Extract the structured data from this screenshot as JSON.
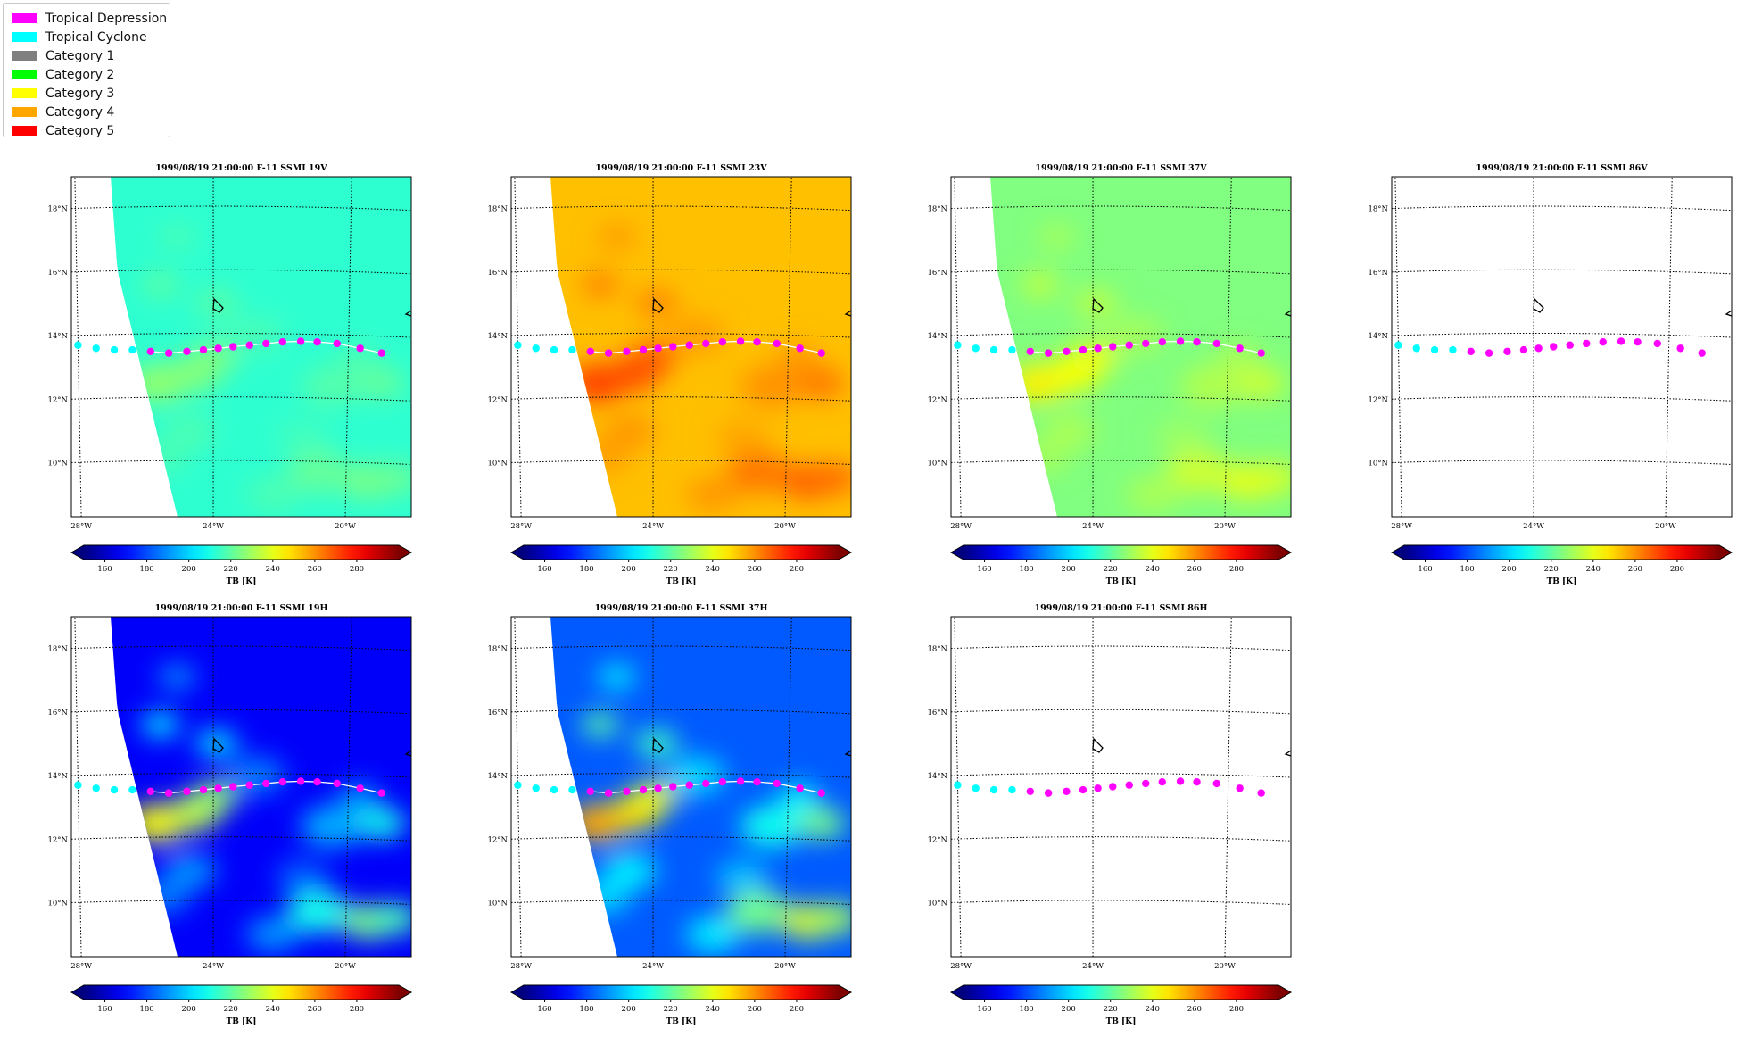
{
  "legend": {
    "items": [
      {
        "label": "Tropical Depression",
        "color": "#ff00ff"
      },
      {
        "label": "Tropical Cyclone",
        "color": "#00ffff"
      },
      {
        "label": "Category 1",
        "color": "#808080"
      },
      {
        "label": "Category 2",
        "color": "#00ff00"
      },
      {
        "label": "Category 3",
        "color": "#ffff00"
      },
      {
        "label": "Category 4",
        "color": "#ffa500"
      },
      {
        "label": "Category 5",
        "color": "#ff0000"
      }
    ]
  },
  "chart_data": [
    {
      "type": "heatmap",
      "title": "1999/08/19 21:00:00  F-11 SSMI 19V",
      "field": "19V",
      "has_data": true
    },
    {
      "type": "heatmap",
      "title": "1999/08/19 21:00:00  F-11 SSMI 23V",
      "field": "23V",
      "has_data": true
    },
    {
      "type": "heatmap",
      "title": "1999/08/19 21:00:00  F-11 SSMI 37V",
      "field": "37V",
      "has_data": true
    },
    {
      "type": "heatmap",
      "title": "1999/08/19 21:00:00  F-11 SSMI 86V",
      "field": "86V",
      "has_data": false
    },
    {
      "type": "heatmap",
      "title": "1999/08/19 21:00:00  F-11 SSMI 19H",
      "field": "19H",
      "has_data": true
    },
    {
      "type": "heatmap",
      "title": "1999/08/19 21:00:00  F-11 SSMI 37H",
      "field": "37H",
      "has_data": true
    },
    {
      "type": "heatmap",
      "title": "1999/08/19 21:00:00  F-11 SSMI 86H",
      "field": "86H",
      "has_data": false
    }
  ],
  "map": {
    "lat_range": [
      8.3,
      19.0
    ],
    "lon_range": [
      -28.3,
      -18.0
    ],
    "lat_ticks": [
      {
        "value": 10,
        "label": "10°N"
      },
      {
        "value": 12,
        "label": "12°N"
      },
      {
        "value": 14,
        "label": "14°N"
      },
      {
        "value": 16,
        "label": "16°N"
      },
      {
        "value": 18,
        "label": "18°N"
      }
    ],
    "lon_ticks": [
      {
        "value": -28,
        "label": "28°W"
      },
      {
        "value": -24,
        "label": "24°W"
      },
      {
        "value": -20,
        "label": "20°W"
      }
    ],
    "gridlines": true
  },
  "track": [
    {
      "lon": -28.1,
      "lat": 13.7,
      "category": "Tropical Cyclone"
    },
    {
      "lon": -27.55,
      "lat": 13.6,
      "category": "Tropical Cyclone"
    },
    {
      "lon": -27.0,
      "lat": 13.55,
      "category": "Tropical Cyclone"
    },
    {
      "lon": -26.45,
      "lat": 13.55,
      "category": "Tropical Cyclone"
    },
    {
      "lon": -25.9,
      "lat": 13.5,
      "category": "Tropical Depression"
    },
    {
      "lon": -25.35,
      "lat": 13.45,
      "category": "Tropical Depression"
    },
    {
      "lon": -24.8,
      "lat": 13.5,
      "category": "Tropical Depression"
    },
    {
      "lon": -24.3,
      "lat": 13.55,
      "category": "Tropical Depression"
    },
    {
      "lon": -23.85,
      "lat": 13.6,
      "category": "Tropical Depression"
    },
    {
      "lon": -23.4,
      "lat": 13.65,
      "category": "Tropical Depression"
    },
    {
      "lon": -22.9,
      "lat": 13.7,
      "category": "Tropical Depression"
    },
    {
      "lon": -22.4,
      "lat": 13.75,
      "category": "Tropical Depression"
    },
    {
      "lon": -21.9,
      "lat": 13.8,
      "category": "Tropical Depression"
    },
    {
      "lon": -21.35,
      "lat": 13.82,
      "category": "Tropical Depression"
    },
    {
      "lon": -20.85,
      "lat": 13.8,
      "category": "Tropical Depression"
    },
    {
      "lon": -20.25,
      "lat": 13.75,
      "category": "Tropical Depression"
    },
    {
      "lon": -19.55,
      "lat": 13.6,
      "category": "Tropical Depression"
    },
    {
      "lon": -18.9,
      "lat": 13.45,
      "category": "Tropical Depression"
    }
  ],
  "colorbar": {
    "label": "TB [K]",
    "vmin": 150,
    "vmax": 300,
    "ticks": [
      160,
      180,
      200,
      220,
      240,
      260,
      280
    ]
  }
}
